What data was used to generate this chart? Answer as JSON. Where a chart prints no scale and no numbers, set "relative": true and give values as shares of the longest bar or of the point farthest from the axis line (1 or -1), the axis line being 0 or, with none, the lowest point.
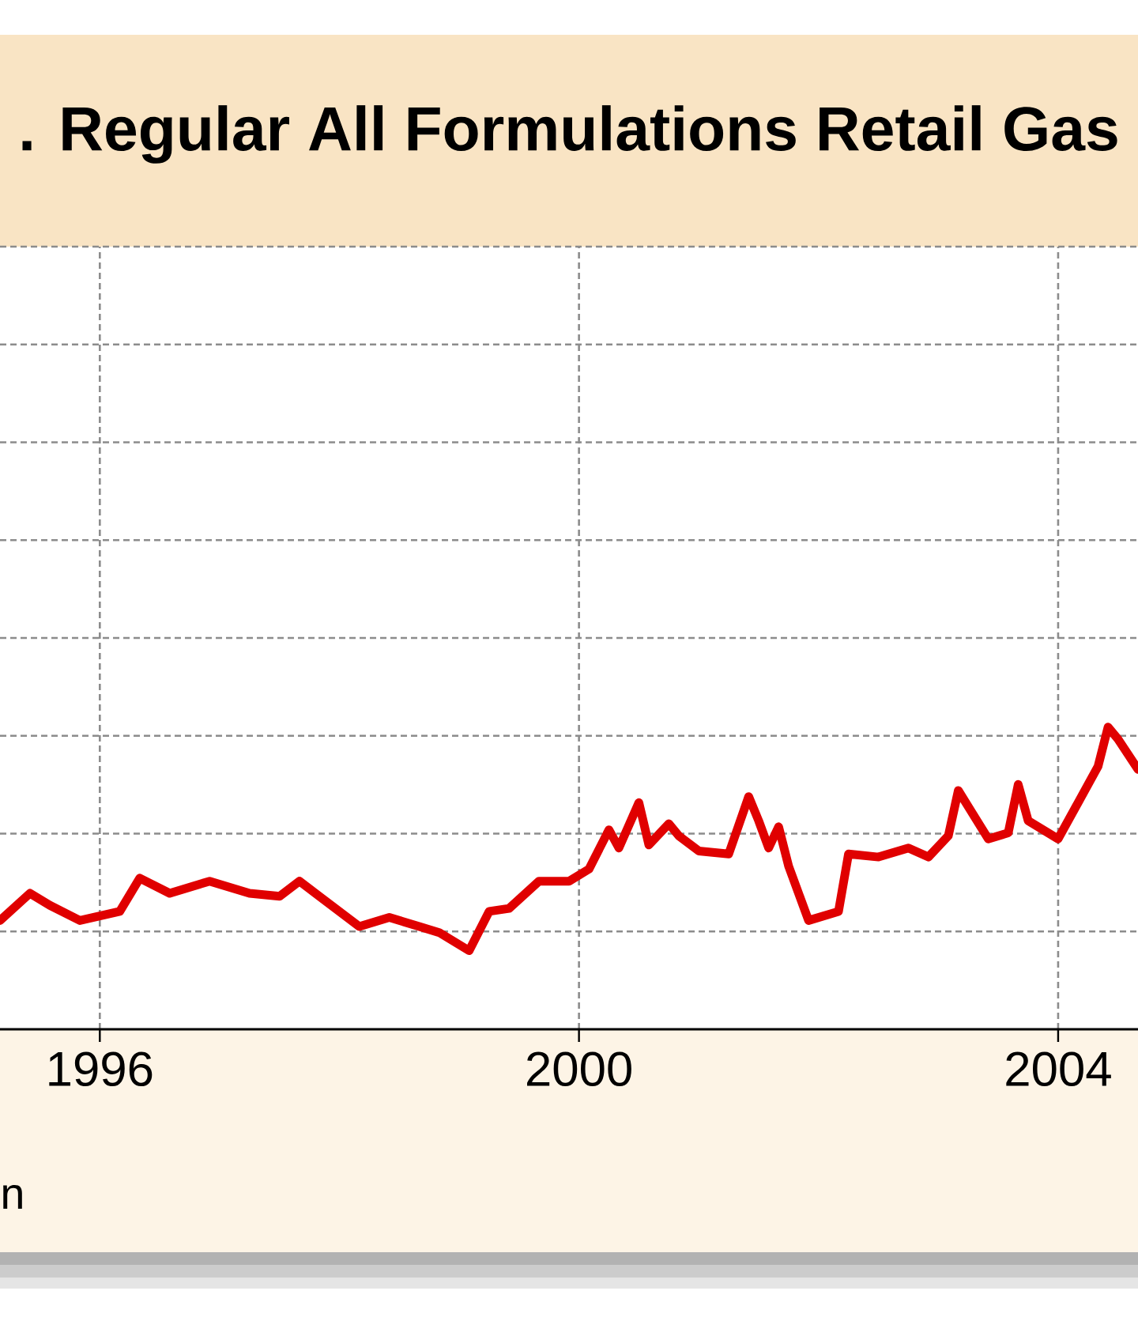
{
  "chart_data": {
    "type": "line",
    "title": ". Regular All Formulations Retail Gas",
    "annotations": [
      "n"
    ],
    "relative": true,
    "grid": true,
    "line_style": "solid",
    "x": [
      "1995-03",
      "1995-06",
      "1995-08",
      "1995-11",
      "1996-03",
      "1996-05",
      "1996-08",
      "1996-12",
      "1997-04",
      "1997-07",
      "1997-09",
      "1997-11",
      "1998-03",
      "1998-06",
      "1998-09",
      "1998-11",
      "1999-02",
      "1999-04",
      "1999-06",
      "1999-09",
      "1999-12",
      "2000-02",
      "2000-04",
      "2000-05",
      "2000-07",
      "2000-08",
      "2000-10",
      "2000-11",
      "2001-01",
      "2001-04",
      "2001-06",
      "2001-07",
      "2001-08",
      "2001-09",
      "2001-10",
      "2001-12",
      "2002-03",
      "2002-04",
      "2002-07",
      "2002-10",
      "2002-12",
      "2003-02",
      "2003-03",
      "2003-06",
      "2003-08",
      "2003-09",
      "2003-10",
      "2004-01",
      "2004-03",
      "2004-05",
      "2004-06",
      "2004-07",
      "2004-08",
      "2004-09"
    ],
    "series": [
      {
        "color": "#e00000",
        "values": [
          0.36,
          0.45,
          0.41,
          0.36,
          0.39,
          0.5,
          0.45,
          0.49,
          0.45,
          0.44,
          0.49,
          0.44,
          0.34,
          0.37,
          0.34,
          0.32,
          0.26,
          0.39,
          0.4,
          0.49,
          0.49,
          0.53,
          0.66,
          0.6,
          0.75,
          0.61,
          0.68,
          0.64,
          0.59,
          0.58,
          0.77,
          0.69,
          0.6,
          0.67,
          0.54,
          0.36,
          0.39,
          0.58,
          0.57,
          0.6,
          0.57,
          0.64,
          0.79,
          0.63,
          0.65,
          0.81,
          0.69,
          0.63,
          0.75,
          0.87,
          1.0,
          0.96,
          0.91,
          0.86
        ]
      }
    ],
    "xlim": [
      "1995-03",
      "2004-09"
    ],
    "xticks": [
      "1996",
      "2000",
      "2004"
    ]
  }
}
